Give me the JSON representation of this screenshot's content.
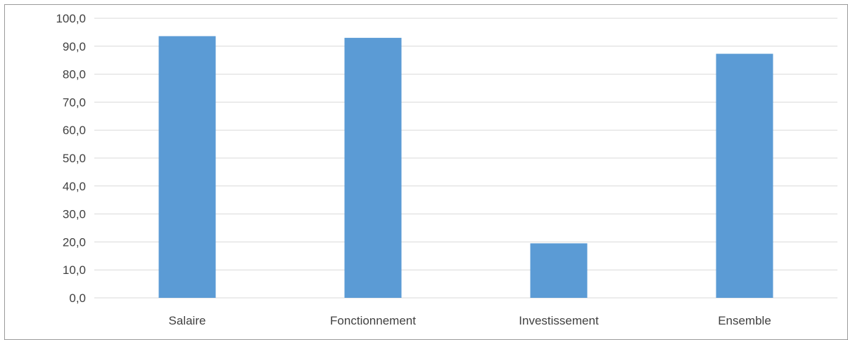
{
  "title_fragments": "",
  "chart_data": {
    "type": "bar",
    "categories": [
      "Salaire",
      "Fonctionnement",
      "Investissement",
      "Ensemble"
    ],
    "values": [
      93.6,
      93.0,
      19.5,
      87.3
    ],
    "ylim": [
      0,
      100
    ],
    "ytick_step": 10,
    "ytick_labels": [
      "0,0",
      "10,0",
      "20,0",
      "30,0",
      "40,0",
      "50,0",
      "60,0",
      "70,0",
      "80,0",
      "90,0",
      "100,0"
    ],
    "grid": true,
    "bar_color": "#5B9BD5",
    "grid_color": "#D9D9D9",
    "title": "",
    "xlabel": "",
    "ylabel": ""
  }
}
